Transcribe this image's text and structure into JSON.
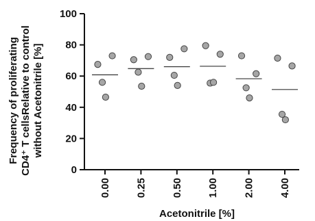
{
  "chart_data": {
    "type": "scatter",
    "xlabel": "Acetonitrile [%]",
    "ylabel_lines": [
      "Frequency of proliferating",
      "CD4⁺ T cellsRelative to control",
      "without Acetonitrile [%]"
    ],
    "categories": [
      "0.00",
      "0.25",
      "0.50",
      "1.00",
      "2.00",
      "4.00"
    ],
    "ylim": [
      0,
      100
    ],
    "yticks": [
      0,
      20,
      40,
      60,
      80,
      100
    ],
    "grid": false,
    "point_color": "#a6a6a6",
    "groups": [
      {
        "category": "0.00",
        "values": [
          67.5,
          73,
          56,
          46.5
        ],
        "mean": 60.8
      },
      {
        "category": "0.25",
        "values": [
          70.5,
          72.5,
          62.5,
          53.5
        ],
        "mean": 64.8
      },
      {
        "category": "0.50",
        "values": [
          72,
          77.5,
          60.5,
          54
        ],
        "mean": 66
      },
      {
        "category": "1.00",
        "values": [
          79.5,
          74,
          55.5,
          56
        ],
        "mean": 66.3
      },
      {
        "category": "2.00",
        "values": [
          73,
          61.5,
          52.5,
          46
        ],
        "mean": 58.3
      },
      {
        "category": "4.00",
        "values": [
          71.5,
          66.5,
          35.5,
          32
        ],
        "mean": 51.4
      }
    ]
  }
}
